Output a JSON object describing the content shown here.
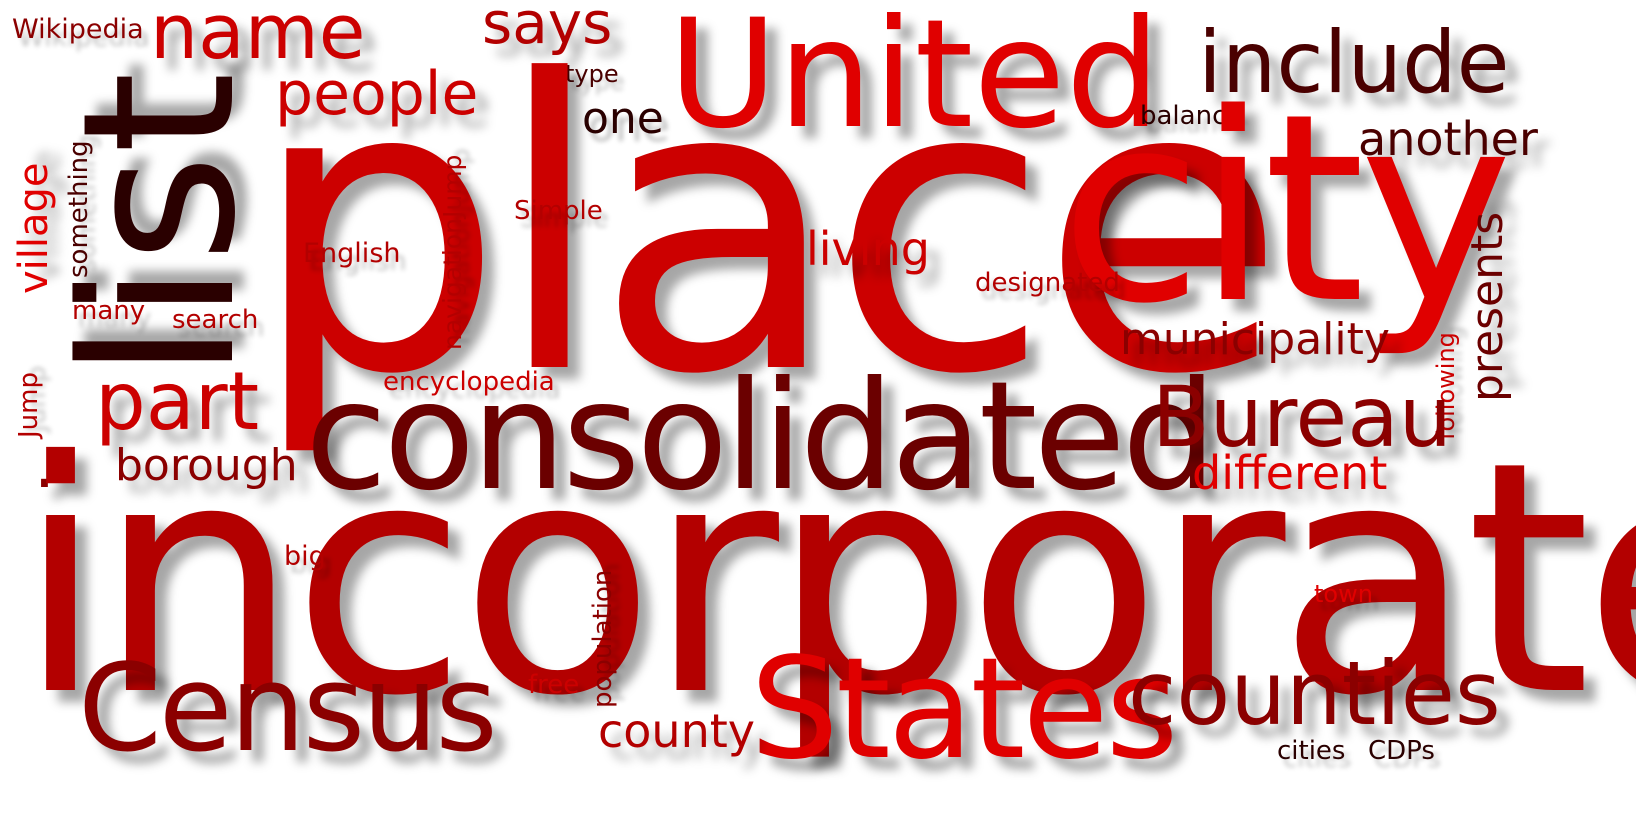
{
  "words": {
    "wikipedia": "Wikipedia",
    "name": "name",
    "says": "says",
    "united": "United",
    "include": "include",
    "list": "list",
    "people": "people",
    "type": "type",
    "one": "one",
    "balance": "balance",
    "another": "another",
    "place": "place",
    "city": "city",
    "village": "village",
    "something": "something",
    "navigation_jump": "navigationJump",
    "simple": "Simple",
    "english": "English",
    "living": "living",
    "designated": "designated",
    "presents": "presents",
    "many": "many",
    "search": "search",
    "municipality": "municipality",
    "following": "following",
    "jump": "Jump",
    "encyclopedia": "encyclopedia",
    "part": "part",
    "consolidated": "consolidated",
    "bureau": "Bureau",
    "borough": "borough",
    "different": "different",
    "incorporated": "incorporated",
    "big": "big",
    "population": "population",
    "town": "town",
    "census": "Census",
    "free": "free",
    "states": "States",
    "counties": "counties",
    "county": "county",
    "cities": "cities",
    "cdps": "CDPs",
    "dot": "."
  }
}
